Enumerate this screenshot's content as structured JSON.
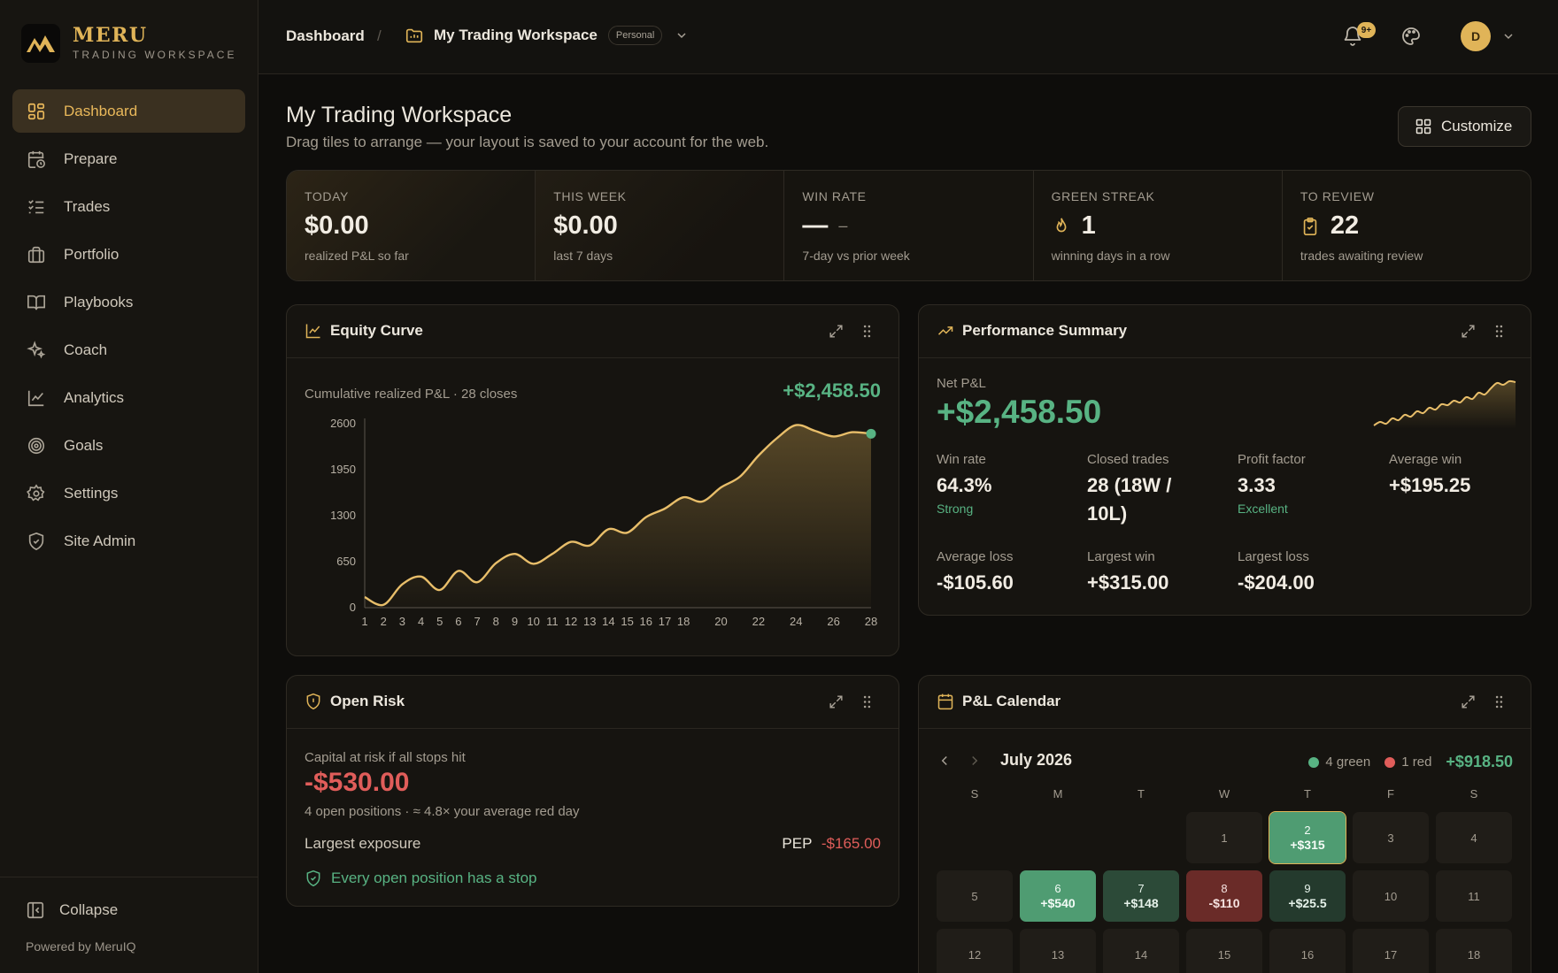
{
  "brand": {
    "name": "MERU",
    "tagline": "TRADING WORKSPACE"
  },
  "sidebar": {
    "items": [
      {
        "label": "Dashboard",
        "icon": "dashboard-icon",
        "active": true
      },
      {
        "label": "Prepare",
        "icon": "calendar-clock-icon"
      },
      {
        "label": "Trades",
        "icon": "list-check-icon"
      },
      {
        "label": "Portfolio",
        "icon": "briefcase-icon"
      },
      {
        "label": "Playbooks",
        "icon": "book-icon"
      },
      {
        "label": "Coach",
        "icon": "sparkles-icon"
      },
      {
        "label": "Analytics",
        "icon": "line-chart-icon"
      },
      {
        "label": "Goals",
        "icon": "target-icon"
      },
      {
        "label": "Settings",
        "icon": "gear-icon"
      },
      {
        "label": "Site Admin",
        "icon": "shield-icon"
      }
    ],
    "collapse_label": "Collapse",
    "powered_by": "Powered by MeruIQ"
  },
  "topbar": {
    "breadcrumb_home": "Dashboard",
    "separator": "/",
    "workspace_name": "My Trading Workspace",
    "workspace_badge": "Personal",
    "notifications_badge": "9+",
    "avatar_initial": "D"
  },
  "page": {
    "title": "My Trading Workspace",
    "subtitle": "Drag tiles to arrange — your layout is saved to your account for the web.",
    "customize_label": "Customize"
  },
  "stats": [
    {
      "label": "TODAY",
      "value": "$0.00",
      "sub": "realized P&L so far"
    },
    {
      "label": "THIS WEEK",
      "value": "$0.00",
      "sub": "last 7 days"
    },
    {
      "label": "WIN RATE",
      "value": "—",
      "delta": "–",
      "sub": "7-day vs prior week"
    },
    {
      "label": "GREEN STREAK",
      "value": "1",
      "sub": "winning days in a row",
      "icon": "flame-icon"
    },
    {
      "label": "TO REVIEW",
      "value": "22",
      "sub": "trades awaiting review",
      "icon": "clipboard-check-icon"
    }
  ],
  "equity": {
    "title": "Equity Curve",
    "caption": "Cumulative realized P&L · 28 closes",
    "total": "+$2,458.50"
  },
  "performance": {
    "title": "Performance Summary",
    "net_label": "Net P&L",
    "net_value": "+$2,458.50",
    "metrics": [
      {
        "label": "Win rate",
        "value": "64.3%",
        "note": "Strong"
      },
      {
        "label": "Closed trades",
        "value": "28 (18W / 10L)"
      },
      {
        "label": "Profit factor",
        "value": "3.33",
        "note": "Excellent"
      },
      {
        "label": "Average win",
        "value": "+$195.25"
      },
      {
        "label": "Average loss",
        "value": "-$105.60"
      },
      {
        "label": "Largest win",
        "value": "+$315.00"
      },
      {
        "label": "Largest loss",
        "value": "-$204.00"
      }
    ],
    "sparkline": [
      10,
      14,
      12,
      18,
      16,
      22,
      20,
      26,
      24,
      30,
      28,
      34,
      33,
      38,
      36,
      42,
      40,
      47,
      45,
      52,
      58,
      56,
      60,
      59
    ]
  },
  "risk": {
    "title": "Open Risk",
    "caption": "Capital at risk if all stops hit",
    "value": "-$530.00",
    "sub": "4 open positions · ≈ 4.8× your average red day",
    "exposure_label": "Largest exposure",
    "exposure_symbol": "PEP",
    "exposure_value": "-$165.00",
    "ok_message": "Every open position has a stop"
  },
  "calendar": {
    "title": "P&L Calendar",
    "month": "July 2026",
    "green_label": "4 green",
    "red_label": "1 red",
    "total": "+$918.50",
    "weekdays": [
      "S",
      "M",
      "T",
      "W",
      "T",
      "F",
      "S"
    ],
    "days": [
      {
        "day": "1",
        "col": 3,
        "row": 0
      },
      {
        "day": "2",
        "col": 4,
        "row": 0,
        "pnl": "+$315",
        "tone": "g1",
        "selected": true
      },
      {
        "day": "3",
        "col": 5,
        "row": 0
      },
      {
        "day": "4",
        "col": 6,
        "row": 0
      },
      {
        "day": "5",
        "col": 0,
        "row": 1
      },
      {
        "day": "6",
        "col": 1,
        "row": 1,
        "pnl": "+$540",
        "tone": "g1"
      },
      {
        "day": "7",
        "col": 2,
        "row": 1,
        "pnl": "+$148",
        "tone": "g2"
      },
      {
        "day": "8",
        "col": 3,
        "row": 1,
        "pnl": "-$110",
        "tone": "r1"
      },
      {
        "day": "9",
        "col": 4,
        "row": 1,
        "pnl": "+$25.5",
        "tone": "g3"
      },
      {
        "day": "10",
        "col": 5,
        "row": 1
      },
      {
        "day": "11",
        "col": 6,
        "row": 1
      },
      {
        "day": "12",
        "col": 0,
        "row": 2
      },
      {
        "day": "13",
        "col": 1,
        "row": 2
      },
      {
        "day": "14",
        "col": 2,
        "row": 2
      },
      {
        "day": "15",
        "col": 3,
        "row": 2
      },
      {
        "day": "16",
        "col": 4,
        "row": 2
      },
      {
        "day": "17",
        "col": 5,
        "row": 2
      },
      {
        "day": "18",
        "col": 6,
        "row": 2
      }
    ]
  },
  "colors": {
    "accent": "#e0b458",
    "positive": "#58b383",
    "negative": "#e05d5a",
    "background": "#0e0d0b"
  },
  "chart_data": {
    "type": "line",
    "x": [
      1,
      2,
      3,
      4,
      5,
      6,
      7,
      8,
      9,
      10,
      11,
      12,
      13,
      14,
      15,
      16,
      17,
      18,
      19,
      20,
      21,
      22,
      23,
      24,
      25,
      26,
      27,
      28
    ],
    "y": [
      150,
      40,
      330,
      440,
      250,
      520,
      360,
      630,
      760,
      620,
      760,
      930,
      880,
      1110,
      1060,
      1280,
      1400,
      1560,
      1500,
      1700,
      1850,
      2150,
      2400,
      2580,
      2500,
      2420,
      2480,
      2458.5
    ],
    "xticks": [
      "1",
      "2",
      "3",
      "4",
      "5",
      "6",
      "7",
      "8",
      "9",
      "10",
      "11",
      "12",
      "13",
      "14",
      "15",
      "16",
      "17",
      "18",
      "20",
      "22",
      "24",
      "26",
      "28"
    ],
    "yticks": [
      0,
      650,
      1300,
      1950,
      2600
    ],
    "ylim": [
      0,
      2600
    ],
    "xlim": [
      1,
      28
    ],
    "grid": false
  }
}
